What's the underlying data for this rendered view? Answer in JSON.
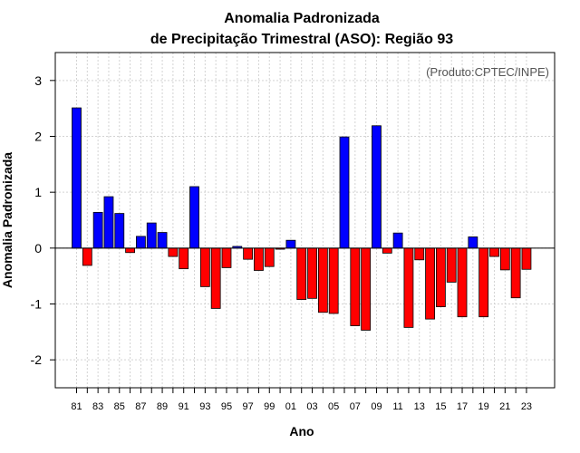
{
  "chart_data": {
    "type": "bar",
    "title": "Anomalia Padronizada",
    "subtitle": "de Precipitação Trimestral (ASO): Região 93",
    "xlabel": "Ano",
    "ylabel": "Anomalia Padronizada",
    "source_note": "(Produto:CPTEC/INPE)",
    "ylim": [
      -2.5,
      3.5
    ],
    "yticks": [
      "-2",
      "-1",
      "0",
      "1",
      "2",
      "3"
    ],
    "ytick_values": [
      -2,
      -1,
      0,
      1,
      2,
      3
    ],
    "grid": true,
    "colors": {
      "positive": "#0000ff",
      "negative": "#ff0000",
      "bar_border": "#000000",
      "grid": "#d3d3d3"
    },
    "categories": [
      "81",
      "82",
      "83",
      "84",
      "85",
      "86",
      "87",
      "88",
      "89",
      "90",
      "91",
      "92",
      "93",
      "94",
      "95",
      "96",
      "97",
      "98",
      "99",
      "00",
      "01",
      "02",
      "03",
      "04",
      "05",
      "06",
      "07",
      "08",
      "09",
      "10",
      "11",
      "12",
      "13",
      "14",
      "15",
      "16",
      "17",
      "18",
      "19",
      "20",
      "21",
      "22",
      "23"
    ],
    "x_tick_labels": [
      "81",
      "83",
      "85",
      "87",
      "89",
      "91",
      "93",
      "95",
      "97",
      "99",
      "01",
      "03",
      "05",
      "07",
      "09",
      "11",
      "13",
      "15",
      "17",
      "19",
      "21",
      "23"
    ],
    "values": [
      2.51,
      -0.31,
      0.64,
      0.92,
      0.62,
      -0.08,
      0.21,
      0.45,
      0.28,
      -0.15,
      -0.37,
      1.1,
      -0.69,
      -1.08,
      -0.35,
      0.03,
      -0.2,
      -0.4,
      -0.33,
      -0.02,
      0.14,
      -0.92,
      -0.9,
      -1.15,
      -1.17,
      1.99,
      -1.39,
      -1.47,
      2.19,
      -0.09,
      0.27,
      -1.42,
      -0.21,
      -1.27,
      -1.05,
      -0.61,
      -1.23,
      0.2,
      -1.23,
      -0.15,
      -0.39,
      -0.89,
      -0.38
    ]
  }
}
